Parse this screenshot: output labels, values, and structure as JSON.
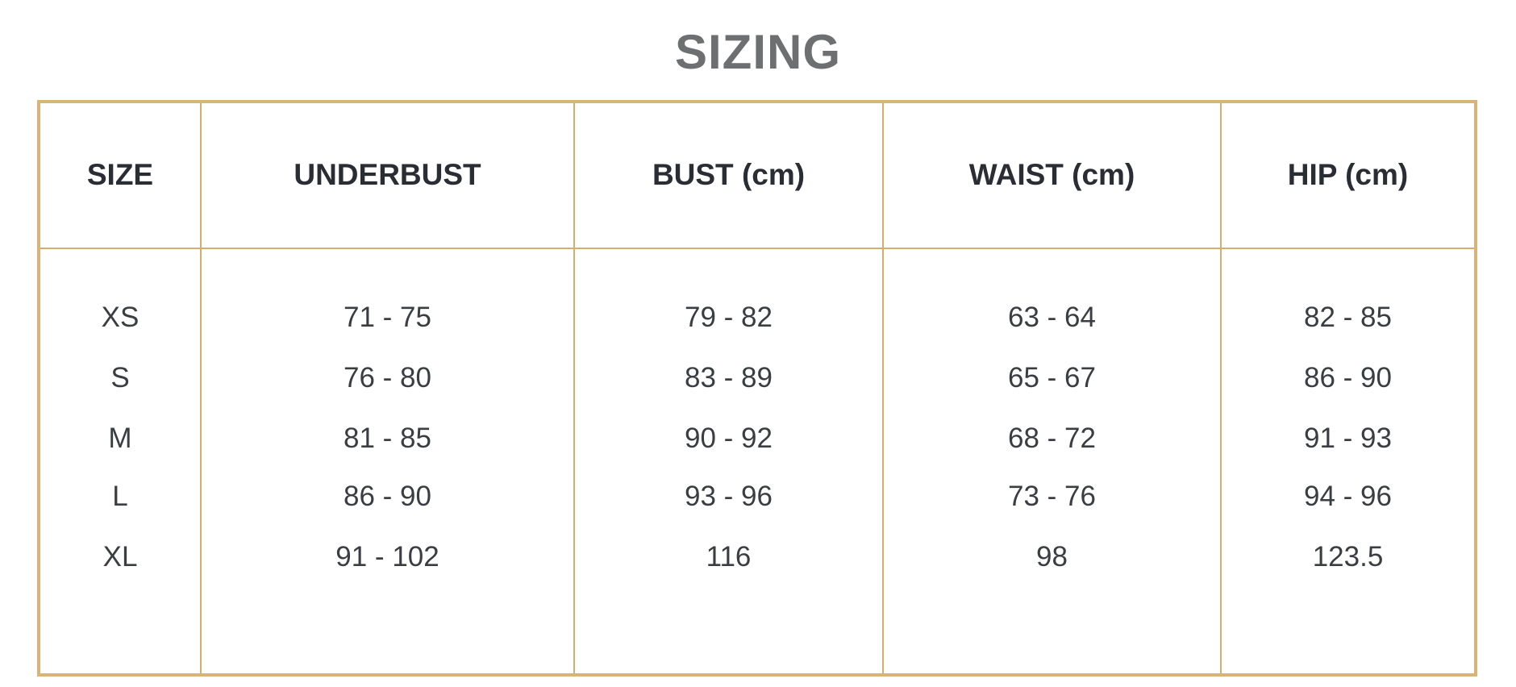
{
  "title": "SIZING",
  "table": {
    "headers": [
      "SIZE",
      "UNDERBUST",
      "BUST (cm)",
      "WAIST (cm)",
      "HIP (cm)"
    ],
    "columns": [
      [
        "XS",
        "S",
        "M",
        "L",
        "XL"
      ],
      [
        "71 - 75",
        "76 - 80",
        "81 - 85",
        "86 - 90",
        "91 - 102"
      ],
      [
        "79 - 82",
        "83 - 89",
        "90 - 92",
        "93 - 96",
        "116"
      ],
      [
        "63 - 64",
        "65 - 67",
        "68 - 72",
        "73 - 76",
        "98"
      ],
      [
        "82 - 85",
        "86 - 90",
        "91 - 93",
        "94 - 96",
        "123.5"
      ]
    ]
  },
  "colors": {
    "border": "#d8b478",
    "title": "#6d6f71",
    "text": "#2a2d33"
  }
}
